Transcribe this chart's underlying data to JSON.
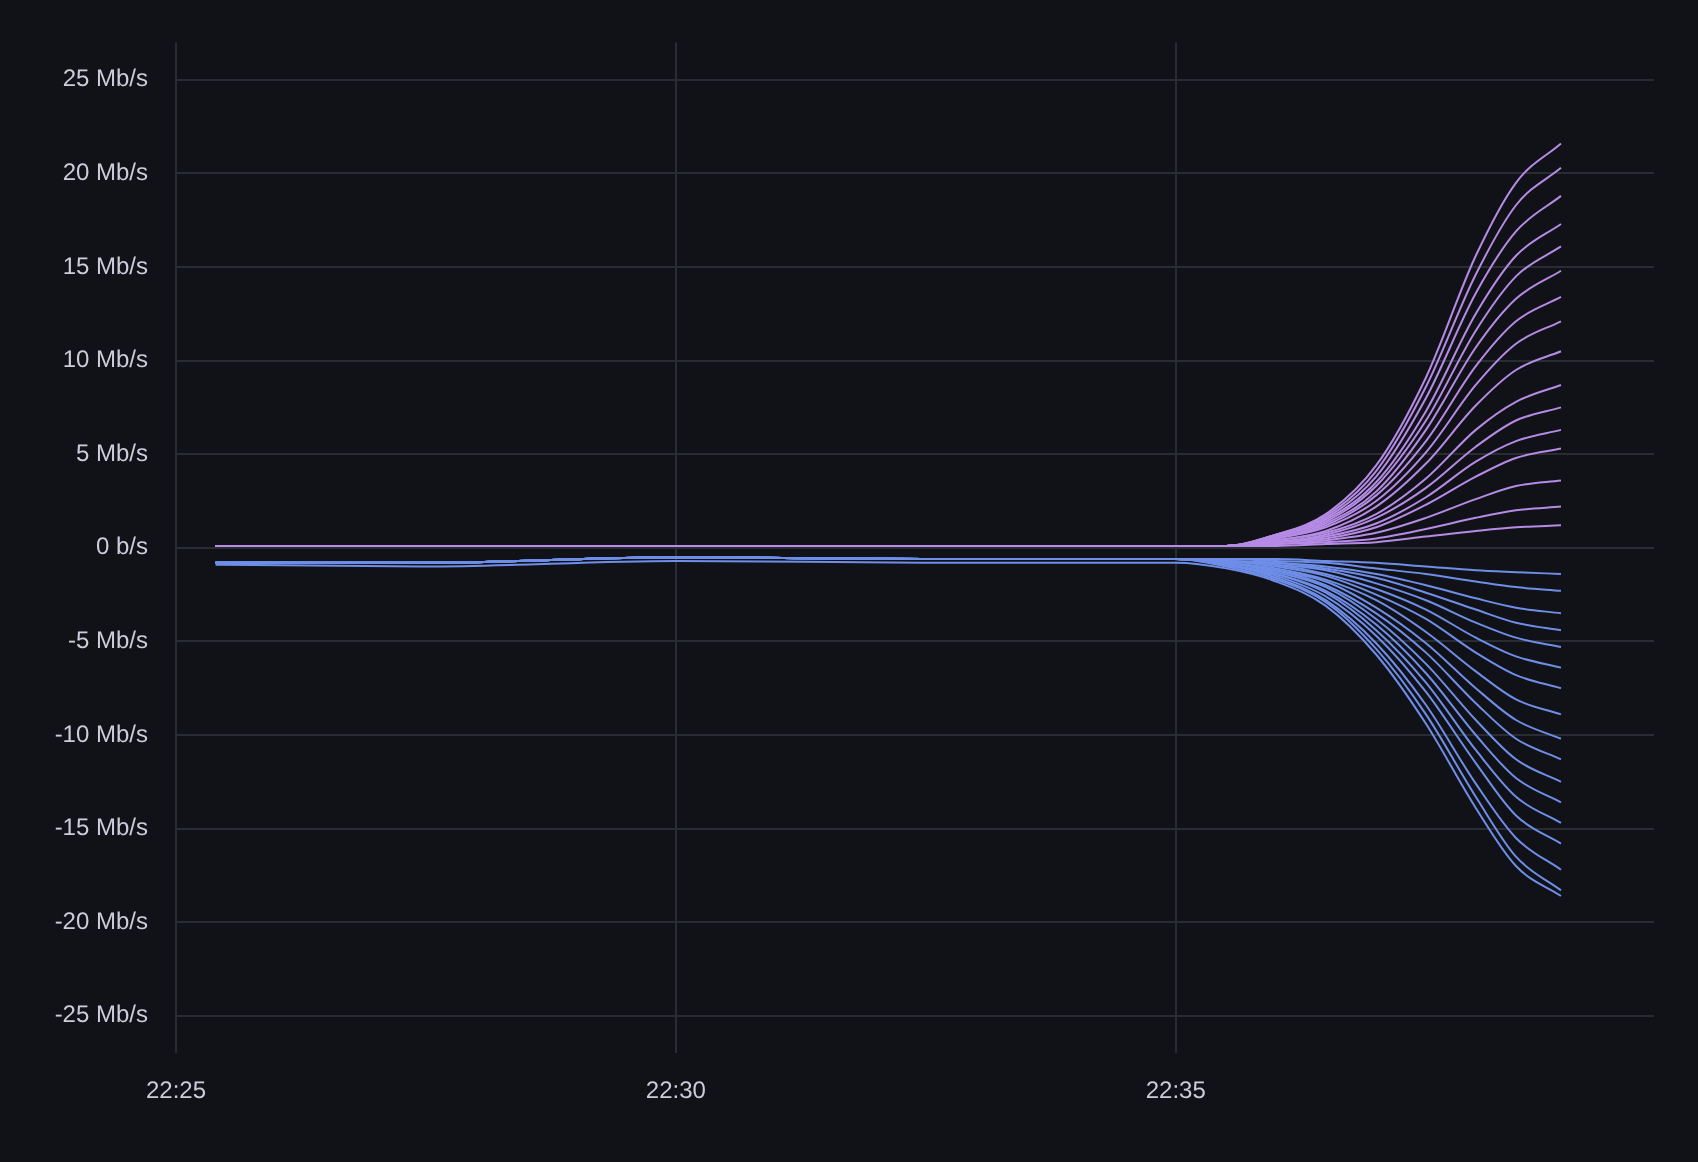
{
  "chart_data": {
    "type": "line",
    "x": [
      22.4233,
      22.4583,
      22.5,
      22.5417,
      22.5833,
      22.5917,
      22.6,
      22.6083,
      22.6167,
      22.625,
      22.6333,
      22.64,
      22.6475
    ],
    "xlim": [
      22.4167,
      22.663
    ],
    "xticks": [
      {
        "value": 22.4167,
        "label": "22:25"
      },
      {
        "value": 22.5,
        "label": "22:30"
      },
      {
        "value": 22.5833,
        "label": "22:35"
      }
    ],
    "ylim": [
      -27,
      27
    ],
    "yticks": [
      {
        "value": -25,
        "label": "-25 Mb/s"
      },
      {
        "value": -20,
        "label": "-20 Mb/s"
      },
      {
        "value": -15,
        "label": "-15 Mb/s"
      },
      {
        "value": -10,
        "label": "-10 Mb/s"
      },
      {
        "value": -5,
        "label": "-5 Mb/s"
      },
      {
        "value": 0,
        "label": "0 b/s"
      },
      {
        "value": 5,
        "label": "5 Mb/s"
      },
      {
        "value": 10,
        "label": "10 Mb/s"
      },
      {
        "value": 15,
        "label": "15 Mb/s"
      },
      {
        "value": 20,
        "label": "20 Mb/s"
      },
      {
        "value": 25,
        "label": "25 Mb/s"
      }
    ],
    "grid": true,
    "legend": false,
    "marker": "none",
    "line_style": "solid",
    "series": [
      {
        "color": "#b58be6",
        "values": [
          0.1,
          0.1,
          0.1,
          0.1,
          0.1,
          0.1,
          0.7,
          1.8,
          4.4,
          9.1,
          15.6,
          19.5,
          21.6
        ]
      },
      {
        "color": "#b58be6",
        "values": [
          0.1,
          0.1,
          0.1,
          0.1,
          0.1,
          0.1,
          0.7,
          1.7,
          4.1,
          8.6,
          14.6,
          18.3,
          20.3
        ]
      },
      {
        "color": "#b58be6",
        "values": [
          0.1,
          0.1,
          0.1,
          0.1,
          0.1,
          0.1,
          0.7,
          1.6,
          3.8,
          8.0,
          13.6,
          16.9,
          18.8
        ]
      },
      {
        "color": "#b58be6",
        "values": [
          0.1,
          0.1,
          0.1,
          0.1,
          0.1,
          0.1,
          0.6,
          1.5,
          3.5,
          7.3,
          12.5,
          15.6,
          17.3
        ]
      },
      {
        "color": "#b58be6",
        "values": [
          0.1,
          0.1,
          0.1,
          0.1,
          0.1,
          0.1,
          0.6,
          1.4,
          3.3,
          6.8,
          11.6,
          14.5,
          16.1
        ]
      },
      {
        "color": "#b58be6",
        "values": [
          0.1,
          0.1,
          0.1,
          0.1,
          0.1,
          0.1,
          0.5,
          1.3,
          3.0,
          6.3,
          10.7,
          13.3,
          14.8
        ]
      },
      {
        "color": "#b58be6",
        "values": [
          0.1,
          0.1,
          0.1,
          0.1,
          0.1,
          0.1,
          0.5,
          1.2,
          2.8,
          5.7,
          9.7,
          12.1,
          13.4
        ]
      },
      {
        "color": "#b58be6",
        "values": [
          0.1,
          0.1,
          0.1,
          0.1,
          0.1,
          0.1,
          0.5,
          1.1,
          2.5,
          5.1,
          8.7,
          10.9,
          12.1
        ]
      },
      {
        "color": "#b58be6",
        "values": [
          0.1,
          0.1,
          0.1,
          0.1,
          0.1,
          0.1,
          0.4,
          0.9,
          2.2,
          4.5,
          7.6,
          9.5,
          10.5
        ]
      },
      {
        "color": "#b58be6",
        "values": [
          0.1,
          0.1,
          0.1,
          0.1,
          0.1,
          0.1,
          0.4,
          0.8,
          1.8,
          3.7,
          6.3,
          7.8,
          8.7
        ]
      },
      {
        "color": "#b58be6",
        "values": [
          0.1,
          0.1,
          0.1,
          0.1,
          0.1,
          0.1,
          0.3,
          0.7,
          1.6,
          3.2,
          5.4,
          6.8,
          7.5
        ]
      },
      {
        "color": "#b58be6",
        "values": [
          0.1,
          0.1,
          0.1,
          0.1,
          0.1,
          0.1,
          0.3,
          0.6,
          1.3,
          2.7,
          4.6,
          5.7,
          6.3
        ]
      },
      {
        "color": "#b58be6",
        "values": [
          0.1,
          0.1,
          0.1,
          0.1,
          0.1,
          0.1,
          0.3,
          0.5,
          1.1,
          2.3,
          3.8,
          4.8,
          5.3
        ]
      },
      {
        "color": "#b58be6",
        "values": [
          0.1,
          0.1,
          0.1,
          0.1,
          0.1,
          0.1,
          0.2,
          0.4,
          0.8,
          1.6,
          2.6,
          3.3,
          3.6
        ]
      },
      {
        "color": "#b58be6",
        "values": [
          0.1,
          0.1,
          0.1,
          0.1,
          0.1,
          0.1,
          0.2,
          0.3,
          0.5,
          1.0,
          1.6,
          2.0,
          2.2
        ]
      },
      {
        "color": "#b58be6",
        "values": [
          0.1,
          0.1,
          0.1,
          0.1,
          0.1,
          0.1,
          0.1,
          0.2,
          0.3,
          0.6,
          0.9,
          1.1,
          1.2
        ]
      },
      {
        "color": "#6e8ee8",
        "values": [
          -0.8,
          -0.8,
          -0.5,
          -0.6,
          -0.6,
          -0.6,
          -0.6,
          -0.7,
          -0.8,
          -1.0,
          -1.2,
          -1.3,
          -1.4
        ]
      },
      {
        "color": "#6e8ee8",
        "values": [
          -0.8,
          -0.8,
          -0.5,
          -0.6,
          -0.6,
          -0.6,
          -0.7,
          -0.8,
          -1.1,
          -1.4,
          -1.8,
          -2.1,
          -2.3
        ]
      },
      {
        "color": "#6e8ee8",
        "values": [
          -0.8,
          -0.8,
          -0.5,
          -0.6,
          -0.6,
          -0.7,
          -0.8,
          -1.0,
          -1.4,
          -2.0,
          -2.7,
          -3.2,
          -3.5
        ]
      },
      {
        "color": "#6e8ee8",
        "values": [
          -0.8,
          -0.8,
          -0.5,
          -0.6,
          -0.6,
          -0.7,
          -0.8,
          -1.1,
          -1.6,
          -2.4,
          -3.3,
          -4.0,
          -4.4
        ]
      },
      {
        "color": "#6e8ee8",
        "values": [
          -0.8,
          -0.8,
          -0.5,
          -0.6,
          -0.6,
          -0.7,
          -0.9,
          -1.2,
          -1.9,
          -2.8,
          -4.0,
          -4.8,
          -5.3
        ]
      },
      {
        "color": "#6e8ee8",
        "values": [
          -0.8,
          -0.8,
          -0.5,
          -0.6,
          -0.6,
          -0.7,
          -0.9,
          -1.4,
          -2.2,
          -3.3,
          -4.8,
          -5.8,
          -6.4
        ]
      },
      {
        "color": "#6e8ee8",
        "values": [
          -0.8,
          -0.8,
          -0.5,
          -0.6,
          -0.6,
          -0.7,
          -1.0,
          -1.5,
          -2.5,
          -3.8,
          -5.6,
          -6.8,
          -7.5
        ]
      },
      {
        "color": "#6e8ee8",
        "values": [
          -0.8,
          -0.8,
          -0.5,
          -0.6,
          -0.6,
          -0.8,
          -1.1,
          -1.7,
          -2.8,
          -4.5,
          -6.6,
          -8.1,
          -8.9
        ]
      },
      {
        "color": "#6e8ee8",
        "values": [
          -0.8,
          -0.8,
          -0.5,
          -0.6,
          -0.6,
          -0.8,
          -1.2,
          -1.8,
          -3.2,
          -5.1,
          -7.5,
          -9.2,
          -10.2
        ]
      },
      {
        "color": "#6e8ee8",
        "values": [
          -0.8,
          -0.8,
          -0.5,
          -0.6,
          -0.6,
          -0.8,
          -1.2,
          -2.0,
          -3.5,
          -5.6,
          -8.3,
          -10.2,
          -11.3
        ]
      },
      {
        "color": "#6e8ee8",
        "values": [
          -0.8,
          -0.8,
          -0.5,
          -0.6,
          -0.6,
          -0.8,
          -1.3,
          -2.1,
          -3.8,
          -6.2,
          -9.2,
          -11.3,
          -12.5
        ]
      },
      {
        "color": "#6e8ee8",
        "values": [
          -0.8,
          -0.8,
          -0.5,
          -0.6,
          -0.6,
          -0.9,
          -1.4,
          -2.3,
          -4.1,
          -6.7,
          -10.0,
          -12.3,
          -13.6
        ]
      },
      {
        "color": "#6e8ee8",
        "values": [
          -0.8,
          -0.8,
          -0.5,
          -0.6,
          -0.6,
          -0.9,
          -1.4,
          -2.4,
          -4.4,
          -7.2,
          -10.8,
          -13.3,
          -14.7
        ]
      },
      {
        "color": "#6e8ee8",
        "values": [
          -0.8,
          -0.8,
          -0.5,
          -0.6,
          -0.6,
          -0.9,
          -1.5,
          -2.6,
          -4.7,
          -7.7,
          -11.5,
          -14.3,
          -15.8
        ]
      },
      {
        "color": "#6e8ee8",
        "values": [
          -0.8,
          -0.8,
          -0.5,
          -0.6,
          -0.6,
          -0.9,
          -1.6,
          -2.8,
          -5.1,
          -8.4,
          -12.6,
          -15.5,
          -17.2
        ]
      },
      {
        "color": "#6e8ee8",
        "values": [
          -0.8,
          -0.8,
          -0.5,
          -0.6,
          -0.6,
          -1.0,
          -1.7,
          -2.9,
          -5.4,
          -8.9,
          -13.3,
          -16.5,
          -18.3
        ]
      },
      {
        "color": "#6e8ee8",
        "values": [
          -0.9,
          -1.0,
          -0.7,
          -0.8,
          -0.8,
          -1.1,
          -1.8,
          -3.1,
          -5.7,
          -9.4,
          -13.9,
          -17.0,
          -18.6
        ]
      }
    ]
  }
}
